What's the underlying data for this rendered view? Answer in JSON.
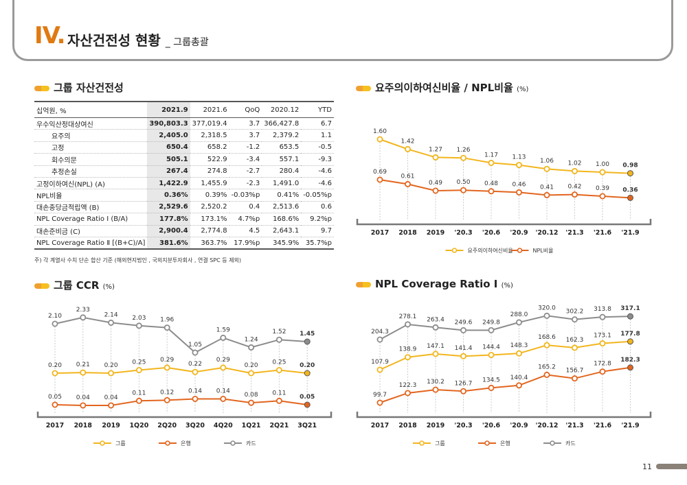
{
  "header": {
    "num": "IV.",
    "title": "자산건전성 현황",
    "subtitle": "_ 그룹총괄"
  },
  "sections": {
    "asset": {
      "title": "그룹 자산건전성"
    },
    "ccr": {
      "title": "그룹 CCR",
      "unit": "(%)"
    },
    "ratio": {
      "title": "요주의이하여신비율 / NPL비율",
      "unit": "(%)"
    },
    "npl": {
      "title": "NPL Coverage Ratio I",
      "unit": "(%)"
    }
  },
  "table": {
    "headers": [
      "십억원, %",
      "2021.9",
      "2021.6",
      "QoQ",
      "2020.12",
      "YTD"
    ],
    "rows": [
      {
        "label": "우수익산정대상여신",
        "sub": false,
        "values": [
          "390,803.3",
          "377,019.4",
          "3.7",
          "366,427.8",
          "6.7"
        ]
      },
      {
        "label": "요주의",
        "sub": true,
        "values": [
          "2,405.0",
          "2,318.5",
          "3.7",
          "2,379.2",
          "1.1"
        ]
      },
      {
        "label": "고정",
        "sub": true,
        "values": [
          "650.4",
          "658.2",
          "-1.2",
          "653.5",
          "-0.5"
        ]
      },
      {
        "label": "회수의문",
        "sub": true,
        "values": [
          "505.1",
          "522.9",
          "-3.4",
          "557.1",
          "-9.3"
        ]
      },
      {
        "label": "추정손실",
        "sub": true,
        "values": [
          "267.4",
          "274.8",
          "-2.7",
          "280.4",
          "-4.6"
        ]
      },
      {
        "label": "고정이하여신(NPL) (A)",
        "sub": false,
        "values": [
          "1,422.9",
          "1,455.9",
          "-2.3",
          "1,491.0",
          "-4.6"
        ]
      },
      {
        "label": "NPL비율",
        "sub": false,
        "values": [
          "0.36%",
          "0.39%",
          "-0.03%p",
          "0.41%",
          "-0.05%p"
        ]
      },
      {
        "label": "대손충당금적립액 (B)",
        "sub": false,
        "values": [
          "2,529.6",
          "2,520.2",
          "0.4",
          "2,513.6",
          "0.6"
        ]
      },
      {
        "label": "NPL Coverage Ratio Ⅰ (B/A)",
        "sub": false,
        "values": [
          "177.8%",
          "173.1%",
          "4.7%p",
          "168.6%",
          "9.2%p"
        ]
      },
      {
        "label": "대손준비금 (C)",
        "sub": false,
        "values": [
          "2,900.4",
          "2,774.8",
          "4.5",
          "2,643.1",
          "9.7"
        ]
      },
      {
        "label": "NPL Coverage Ratio Ⅱ [(B+C)/A]",
        "sub": false,
        "values": [
          "381.6%",
          "363.7%",
          "17.9%p",
          "345.9%",
          "35.7%p"
        ]
      }
    ],
    "note": "주) 각 계열사 수치 단순 합산 기준 (해외현지법인 , 국외지분투자회사 , 연결 SPC 등 제외)"
  },
  "chart_data": [
    {
      "id": "ratio",
      "type": "line",
      "categories": [
        "2017",
        "2018",
        "2019",
        "'20.3",
        "'20.6",
        "'20.9",
        "'20.12",
        "'21.3",
        "'21.6",
        "'21.9"
      ],
      "series": [
        {
          "name": "요주의이하여신비율",
          "color": "#f2b51c",
          "values": [
            1.6,
            1.42,
            1.27,
            1.26,
            1.17,
            1.13,
            1.06,
            1.02,
            1.0,
            0.98
          ],
          "labels": [
            "1.60",
            "1.42",
            "1.27",
            "1.26",
            "1.17",
            "1.13",
            "1.06",
            "1.02",
            "1.00",
            "0.98"
          ]
        },
        {
          "name": "NPL비율",
          "color": "#e2651e",
          "values": [
            0.69,
            0.61,
            0.49,
            0.5,
            0.48,
            0.46,
            0.41,
            0.42,
            0.39,
            0.36
          ],
          "labels": [
            "0.69",
            "0.61",
            "0.49",
            "0.50",
            "0.48",
            "0.46",
            "0.41",
            "0.42",
            "0.39",
            "0.36"
          ]
        }
      ]
    },
    {
      "id": "ccr",
      "type": "line",
      "categories": [
        "2017",
        "2018",
        "2019",
        "1Q20",
        "2Q20",
        "3Q20",
        "4Q20",
        "1Q21",
        "2Q21",
        "3Q21"
      ],
      "series": [
        {
          "name": "그룹",
          "color": "#f2b51c",
          "values": [
            0.2,
            0.21,
            0.2,
            0.25,
            0.29,
            0.22,
            0.29,
            0.2,
            0.25,
            0.2
          ],
          "labels": [
            "0.20",
            "0.21",
            "0.20",
            "0.25",
            "0.29",
            "0.22",
            "0.29",
            "0.20",
            "0.25",
            "0.20"
          ]
        },
        {
          "name": "은행",
          "color": "#e2651e",
          "values": [
            0.05,
            0.04,
            0.04,
            0.11,
            0.12,
            0.14,
            0.14,
            0.08,
            0.11,
            0.05
          ],
          "labels": [
            "0.05",
            "0.04",
            "0.04",
            "0.11",
            "0.12",
            "0.14",
            "0.14",
            "0.08",
            "0.11",
            "0.05"
          ]
        },
        {
          "name": "카드",
          "color": "#8c8c8c",
          "values": [
            2.1,
            2.33,
            2.14,
            2.03,
            1.96,
            1.05,
            1.59,
            1.24,
            1.52,
            1.45
          ],
          "labels": [
            "2.10",
            "2.33",
            "2.14",
            "2.03",
            "1.96",
            "1.05",
            "1.59",
            "1.24",
            "1.52",
            "1.45"
          ]
        }
      ]
    },
    {
      "id": "npl",
      "type": "line",
      "categories": [
        "2017",
        "2018",
        "2019",
        "'20.3",
        "'20.6",
        "'20.9",
        "'20.12",
        "'21.3",
        "'21.6",
        "'21.9"
      ],
      "series": [
        {
          "name": "그룹",
          "color": "#f2b51c",
          "values": [
            107.9,
            138.9,
            147.1,
            141.4,
            144.4,
            148.3,
            168.6,
            162.3,
            173.1,
            177.8
          ],
          "labels": [
            "107.9",
            "138.9",
            "147.1",
            "141.4",
            "144.4",
            "148.3",
            "168.6",
            "162.3",
            "173.1",
            "177.8"
          ]
        },
        {
          "name": "은행",
          "color": "#e2651e",
          "values": [
            99.7,
            122.3,
            130.2,
            126.7,
            134.5,
            140.4,
            165.2,
            156.7,
            172.8,
            182.3
          ],
          "labels": [
            "99.7",
            "122.3",
            "130.2",
            "126.7",
            "134.5",
            "140.4",
            "165.2",
            "156.7",
            "172.8",
            "182.3"
          ]
        },
        {
          "name": "카드",
          "color": "#8c8c8c",
          "values": [
            204.3,
            278.1,
            263.4,
            249.6,
            249.8,
            288.0,
            320.0,
            302.2,
            313.8,
            317.1
          ],
          "labels": [
            "204.3",
            "278.1",
            "263.4",
            "249.6",
            "249.8",
            "288.0",
            "320.0",
            "302.2",
            "313.8",
            "317.1"
          ]
        }
      ]
    }
  ],
  "page": {
    "number": "11"
  }
}
